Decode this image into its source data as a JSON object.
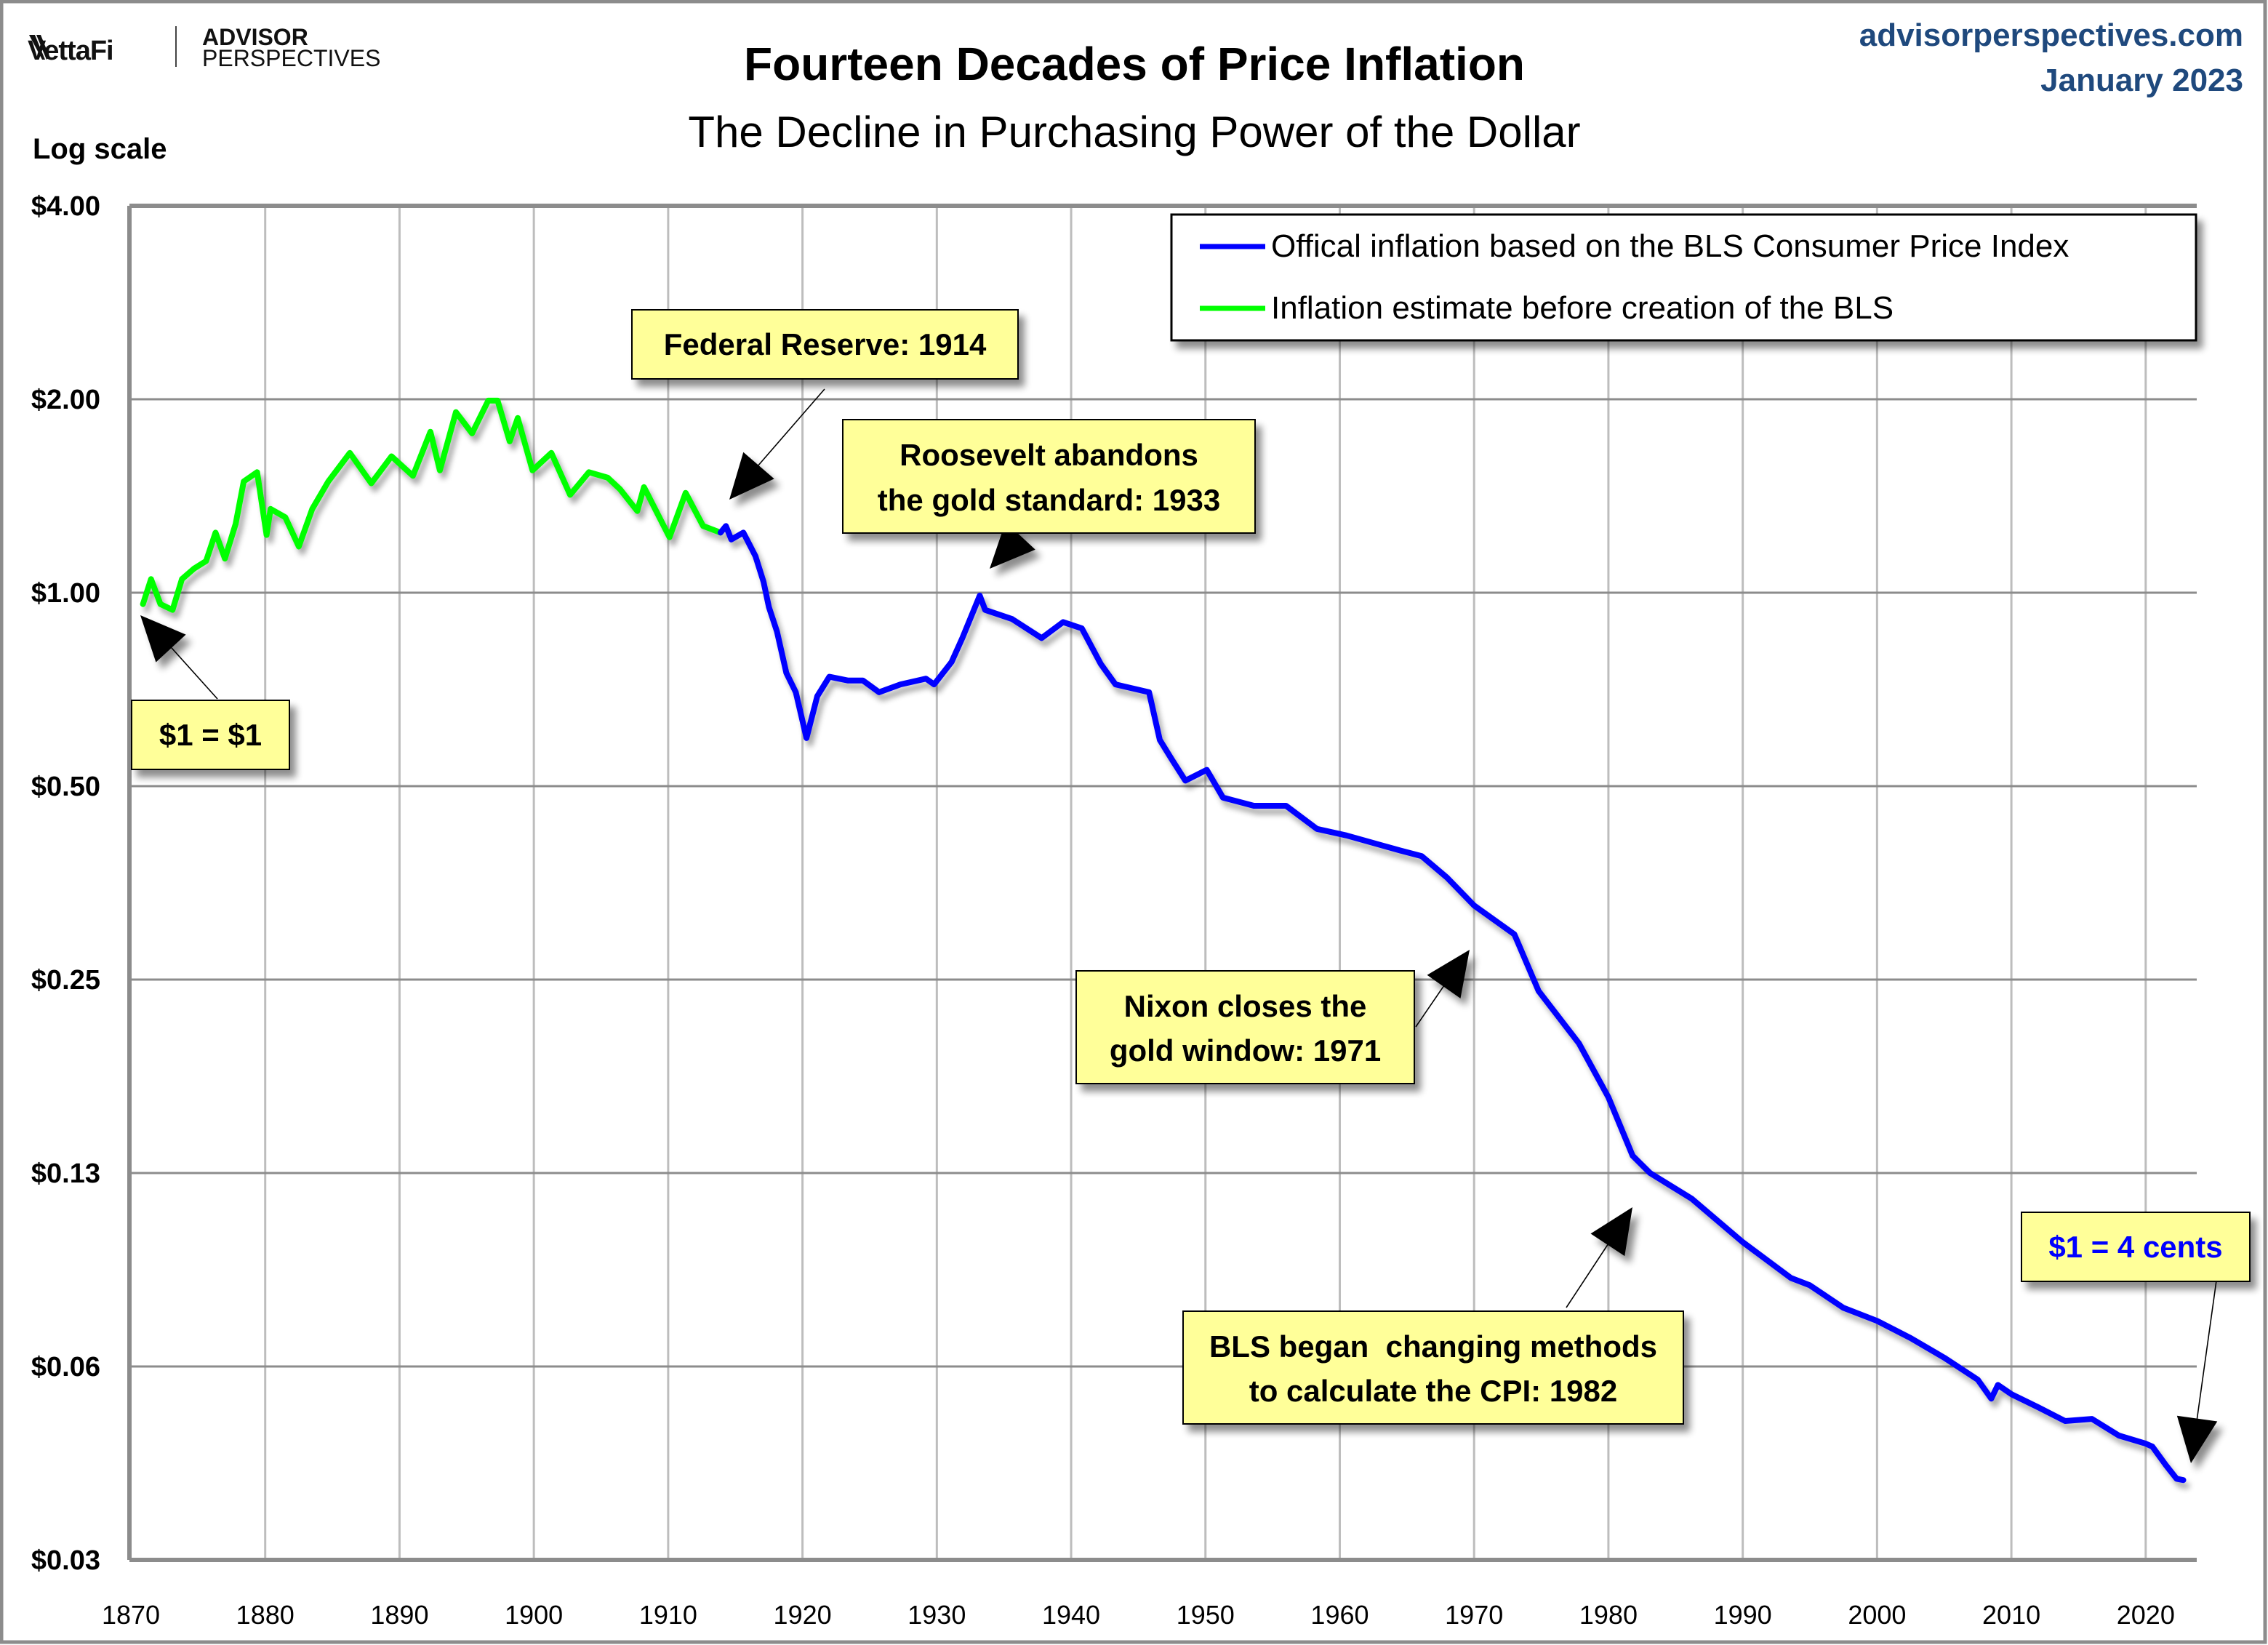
{
  "header": {
    "logo_vettafi": "VettaFi",
    "logo_advisor": "ADVISOR",
    "logo_perspectives": "PERSPECTIVES",
    "site": "advisorperspectives.com",
    "date": "January 2023"
  },
  "colors": {
    "bls_series": "#0000ff",
    "pre_bls_series": "#00ff00",
    "annotation_fill": "#ffff99",
    "site_text": "#1f497d",
    "highlight_text": "#0000ff"
  },
  "chart_data": {
    "type": "line",
    "title": "Fourteen Decades of Price Inflation",
    "subtitle": "The Decline in Purchasing Power of the Dollar",
    "ylabel": "Log scale",
    "xlabel": "",
    "yscale": "log2",
    "ylim": [
      0.03125,
      4
    ],
    "xlim": [
      1870,
      2023.8
    ],
    "grid": true,
    "legend_position": "top-right",
    "y_ticks": [
      {
        "value": 4,
        "label": "$4.00"
      },
      {
        "value": 2,
        "label": "$2.00"
      },
      {
        "value": 1,
        "label": "$1.00"
      },
      {
        "value": 0.5,
        "label": "$0.50"
      },
      {
        "value": 0.25,
        "label": "$0.25"
      },
      {
        "value": 0.125,
        "label": "$0.13"
      },
      {
        "value": 0.0625,
        "label": "$0.06"
      },
      {
        "value": 0.03125,
        "label": "$0.03"
      }
    ],
    "x_ticks": [
      "1870",
      "1880",
      "1890",
      "1900",
      "1910",
      "1920",
      "1930",
      "1940",
      "1950",
      "1960",
      "1970",
      "1980",
      "1990",
      "2000",
      "2010",
      "2020"
    ],
    "series": [
      {
        "name": "Inflation estimate before creation of the BLS",
        "color": "#00ff00",
        "x": [
          1870.9,
          1871.5,
          1872.2,
          1873.1,
          1873.8,
          1874.7,
          1875.6,
          1876.3,
          1877.0,
          1877.8,
          1878.4,
          1879.4,
          1880.1,
          1880.4,
          1881.5,
          1882.5,
          1883.5,
          1884.7,
          1886.3,
          1887.9,
          1889.4,
          1891.0,
          1892.3,
          1893.0,
          1894.2,
          1895.4,
          1896.6,
          1897.3,
          1898.2,
          1898.8,
          1899.9,
          1901.3,
          1902.7,
          1904.1,
          1905.5,
          1906.4,
          1907.7,
          1908.2,
          1910.1,
          1911.3,
          1912.6,
          1913.9
        ],
        "values": [
          0.96,
          1.05,
          0.96,
          0.94,
          1.05,
          1.09,
          1.12,
          1.24,
          1.13,
          1.28,
          1.49,
          1.54,
          1.23,
          1.35,
          1.31,
          1.18,
          1.35,
          1.49,
          1.65,
          1.48,
          1.63,
          1.52,
          1.78,
          1.55,
          1.91,
          1.77,
          1.99,
          1.99,
          1.72,
          1.87,
          1.55,
          1.65,
          1.42,
          1.54,
          1.51,
          1.45,
          1.34,
          1.46,
          1.22,
          1.43,
          1.27,
          1.24
        ]
      },
      {
        "name": "Offical inflation based on the BLS Consumer Price Index",
        "color": "#0000ff",
        "x": [
          1913.9,
          1914.3,
          1914.7,
          1915.6,
          1916.5,
          1917.1,
          1917.5,
          1918.1,
          1918.8,
          1919.5,
          1920.3,
          1921.1,
          1922.0,
          1923.4,
          1924.5,
          1925.7,
          1927.3,
          1929.2,
          1929.8,
          1931.1,
          1931.9,
          1933.2,
          1933.6,
          1935.6,
          1937.8,
          1939.4,
          1940.8,
          1942.2,
          1943.3,
          1945.8,
          1946.6,
          1947.5,
          1948.5,
          1950.1,
          1951.3,
          1953.6,
          1956.0,
          1958.3,
          1960.5,
          1964.5,
          1966.1,
          1968.0,
          1970.0,
          1973.0,
          1974.8,
          1977.8,
          1980.0,
          1981.8,
          1983.1,
          1986.2,
          1990.0,
          1993.6,
          1995.0,
          1997.5,
          2000.0,
          2002.5,
          2005.0,
          2007.5,
          2008.5,
          2009.0,
          2010.0,
          2012.0,
          2014.0,
          2016.0,
          2018.0,
          2020.0,
          2020.5,
          2021.5,
          2022.3,
          2022.8
        ],
        "values": [
          1.24,
          1.27,
          1.21,
          1.24,
          1.14,
          1.04,
          0.95,
          0.87,
          0.75,
          0.7,
          0.594,
          0.69,
          0.74,
          0.73,
          0.73,
          0.7,
          0.72,
          0.735,
          0.72,
          0.78,
          0.85,
          0.99,
          0.94,
          0.91,
          0.85,
          0.9,
          0.88,
          0.775,
          0.72,
          0.7,
          0.59,
          0.55,
          0.51,
          0.53,
          0.48,
          0.466,
          0.466,
          0.429,
          0.419,
          0.397,
          0.389,
          0.36,
          0.326,
          0.294,
          0.24,
          0.199,
          0.164,
          0.133,
          0.125,
          0.114,
          0.0976,
          0.0858,
          0.0836,
          0.0771,
          0.0736,
          0.0692,
          0.0645,
          0.0596,
          0.0557,
          0.0585,
          0.0566,
          0.054,
          0.0514,
          0.0518,
          0.0488,
          0.0474,
          0.0469,
          0.0439,
          0.0418,
          0.0416
        ]
      }
    ],
    "annotations": [
      {
        "id": "one-dollar",
        "lines": [
          "$1 = $1"
        ],
        "target": {
          "x": 1870.7,
          "value": 0.94
        },
        "style": "black"
      },
      {
        "id": "federal-reserve",
        "lines": [
          "Federal Reserve: 1914"
        ],
        "target": {
          "x": 1914.6,
          "value": 1.35
        },
        "style": "black"
      },
      {
        "id": "roosevelt",
        "lines": [
          "Roosevelt abandons",
          "the gold standard: 1933"
        ],
        "target": {
          "x": 1934.0,
          "value": 1.06
        },
        "style": "black"
      },
      {
        "id": "nixon",
        "lines": [
          "Nixon closes the",
          "gold window: 1971"
        ],
        "target": {
          "x": 1970.2,
          "value": 0.27
        },
        "style": "black"
      },
      {
        "id": "bls-methods",
        "lines": [
          "BLS began  changing methods",
          "to calculate the CPI: 1982"
        ],
        "target": {
          "x": 1981.8,
          "value": 0.114
        },
        "style": "black"
      },
      {
        "id": "four-cents",
        "lines": [
          "$1 = 4 cents"
        ],
        "target": {
          "x": 2023.0,
          "value": 0.0398
        },
        "style": "blue"
      }
    ]
  }
}
